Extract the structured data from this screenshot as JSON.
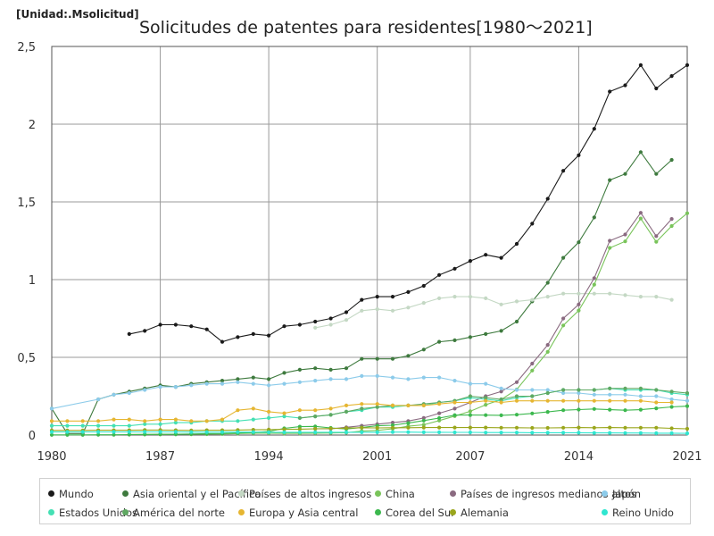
{
  "chart_data": {
    "type": "line",
    "unit_label": "[Unidad:.Msolicitud]",
    "title": "Solicitudes de patentes para residentes[1980～2021]",
    "xlabel": "",
    "ylabel": "",
    "xlim": [
      1980,
      2021
    ],
    "ylim": [
      0,
      2.5
    ],
    "xticks": [
      "1980",
      "1987",
      "1994",
      "2001",
      "2007",
      "2014",
      "2021"
    ],
    "yticks": [
      "0",
      "0,5",
      "1",
      "1,5",
      "2",
      "2,5"
    ],
    "grid": true,
    "legend_position": "bottom",
    "series": [
      {
        "name": "Mundo",
        "color": "#1a1a1a",
        "x": [
          1985,
          1986,
          1987,
          1988,
          1989,
          1990,
          1991,
          1992,
          1993,
          1994,
          1995,
          1996,
          1997,
          1998,
          1999,
          2000,
          2001,
          2002,
          2003,
          2004,
          2005,
          2006,
          2007,
          2008,
          2009,
          2010,
          2011,
          2012,
          2013,
          2014,
          2015,
          2016,
          2017,
          2018,
          2019,
          2020,
          2021
        ],
        "y": [
          0.65,
          0.67,
          0.71,
          0.71,
          0.7,
          0.68,
          0.6,
          0.63,
          0.65,
          0.64,
          0.7,
          0.71,
          0.73,
          0.75,
          0.79,
          0.87,
          0.89,
          0.89,
          0.92,
          0.96,
          1.03,
          1.07,
          1.12,
          1.16,
          1.14,
          1.23,
          1.36,
          1.52,
          1.7,
          1.8,
          1.97,
          2.21,
          2.25,
          2.38,
          2.23,
          2.31,
          2.38
        ]
      },
      {
        "name": "Asia oriental y el Pacífico",
        "color": "#3e7a3e",
        "x": [
          1980,
          1981,
          1982,
          1983,
          1984,
          1985,
          1986,
          1987,
          1988,
          1989,
          1990,
          1991,
          1992,
          1993,
          1994,
          1995,
          1996,
          1997,
          1998,
          1999,
          2000,
          2001,
          2002,
          2003,
          2004,
          2005,
          2006,
          2007,
          2008,
          2009,
          2010,
          2011,
          2012,
          2013,
          2014,
          2015,
          2016,
          2017,
          2018,
          2019,
          2020
        ],
        "y": [
          0.17,
          0.01,
          0.01,
          0.23,
          0.26,
          0.28,
          0.3,
          0.32,
          0.31,
          0.33,
          0.34,
          0.35,
          0.36,
          0.37,
          0.36,
          0.4,
          0.42,
          0.43,
          0.42,
          0.43,
          0.49,
          0.49,
          0.49,
          0.51,
          0.55,
          0.6,
          0.61,
          0.63,
          0.65,
          0.67,
          0.73,
          0.86,
          0.98,
          1.14,
          1.24,
          1.4,
          1.64,
          1.68,
          1.82,
          1.68,
          1.77
        ]
      },
      {
        "name": "Países de altos ingresos",
        "color": "#c4d8c4",
        "x": [
          1997,
          1998,
          1999,
          2000,
          2001,
          2002,
          2003,
          2004,
          2005,
          2006,
          2007,
          2008,
          2009,
          2010,
          2011,
          2012,
          2013,
          2014,
          2015,
          2016,
          2017,
          2018,
          2019,
          2020
        ],
        "y": [
          0.69,
          0.71,
          0.74,
          0.8,
          0.81,
          0.8,
          0.82,
          0.85,
          0.88,
          0.89,
          0.89,
          0.88,
          0.84,
          0.86,
          0.87,
          0.89,
          0.91,
          0.91,
          0.91,
          0.91,
          0.9,
          0.89,
          0.89,
          0.87
        ]
      },
      {
        "name": "China",
        "color": "#79c45a",
        "x": [
          1985,
          1986,
          1987,
          1988,
          1989,
          1990,
          1991,
          1992,
          1993,
          1994,
          1995,
          1996,
          1997,
          1998,
          1999,
          2000,
          2001,
          2002,
          2003,
          2004,
          2005,
          2006,
          2007,
          2008,
          2009,
          2010,
          2011,
          2012,
          2013,
          2014,
          2015,
          2016,
          2017,
          2018,
          2019,
          2020,
          2021
        ],
        "y": [
          0.004,
          0.004,
          0.004,
          0.005,
          0.005,
          0.006,
          0.007,
          0.01,
          0.012,
          0.012,
          0.011,
          0.011,
          0.012,
          0.013,
          0.015,
          0.025,
          0.03,
          0.04,
          0.057,
          0.066,
          0.093,
          0.122,
          0.153,
          0.195,
          0.229,
          0.293,
          0.415,
          0.535,
          0.705,
          0.801,
          0.968,
          1.204,
          1.246,
          1.393,
          1.243,
          1.345,
          1.427
        ]
      },
      {
        "name": "Países de ingresos medianos altos",
        "color": "#8a6a80",
        "x": [
          1997,
          1998,
          1999,
          2000,
          2001,
          2002,
          2003,
          2004,
          2005,
          2006,
          2007,
          2008,
          2009,
          2010,
          2011,
          2012,
          2013,
          2014,
          2015,
          2016,
          2017,
          2018,
          2019,
          2020
        ],
        "y": [
          0.04,
          0.04,
          0.05,
          0.06,
          0.07,
          0.08,
          0.09,
          0.11,
          0.14,
          0.17,
          0.21,
          0.25,
          0.28,
          0.34,
          0.46,
          0.58,
          0.75,
          0.84,
          1.01,
          1.25,
          1.29,
          1.43,
          1.28,
          1.39
        ]
      },
      {
        "name": "Japón",
        "color": "#8ccbea",
        "x": [
          1980,
          1983,
          1984,
          1985,
          1986,
          1987,
          1988,
          1989,
          1990,
          1991,
          1992,
          1993,
          1994,
          1995,
          1996,
          1997,
          1998,
          1999,
          2000,
          2001,
          2002,
          2003,
          2004,
          2005,
          2006,
          2007,
          2008,
          2009,
          2010,
          2011,
          2012,
          2013,
          2014,
          2015,
          2016,
          2017,
          2018,
          2019,
          2020,
          2021
        ],
        "y": [
          0.17,
          0.23,
          0.26,
          0.27,
          0.29,
          0.31,
          0.31,
          0.32,
          0.33,
          0.33,
          0.34,
          0.33,
          0.32,
          0.33,
          0.34,
          0.35,
          0.36,
          0.36,
          0.38,
          0.38,
          0.37,
          0.36,
          0.37,
          0.37,
          0.35,
          0.33,
          0.33,
          0.3,
          0.29,
          0.29,
          0.29,
          0.27,
          0.27,
          0.26,
          0.26,
          0.26,
          0.25,
          0.25,
          0.23,
          0.22
        ]
      },
      {
        "name": "Estados Unidos",
        "color": "#44e0b4",
        "x": [
          1980,
          1981,
          1982,
          1983,
          1984,
          1985,
          1986,
          1987,
          1988,
          1989,
          1990,
          1991,
          1992,
          1993,
          1994,
          1995,
          1996,
          1997,
          1998,
          1999,
          2000,
          2001,
          2002,
          2003,
          2004,
          2005,
          2006,
          2007,
          2008,
          2009,
          2010,
          2011,
          2012,
          2013,
          2014,
          2015,
          2016,
          2017,
          2018,
          2019,
          2020,
          2021
        ],
        "y": [
          0.06,
          0.06,
          0.06,
          0.06,
          0.06,
          0.06,
          0.07,
          0.07,
          0.08,
          0.08,
          0.09,
          0.09,
          0.09,
          0.1,
          0.11,
          0.12,
          0.11,
          0.12,
          0.13,
          0.15,
          0.16,
          0.18,
          0.18,
          0.19,
          0.19,
          0.21,
          0.22,
          0.24,
          0.23,
          0.22,
          0.24,
          0.25,
          0.27,
          0.29,
          0.29,
          0.29,
          0.3,
          0.29,
          0.29,
          0.29,
          0.27,
          0.26
        ]
      },
      {
        "name": "América del norte",
        "color": "#5fa862",
        "x": [
          1996,
          1997,
          1998,
          1999,
          2000,
          2001,
          2002,
          2003,
          2004,
          2005,
          2006,
          2007,
          2008,
          2009,
          2010,
          2011,
          2012,
          2013,
          2014,
          2015,
          2016,
          2017,
          2018,
          2019,
          2020,
          2021
        ],
        "y": [
          0.11,
          0.12,
          0.13,
          0.15,
          0.17,
          0.18,
          0.19,
          0.19,
          0.2,
          0.21,
          0.22,
          0.25,
          0.24,
          0.23,
          0.25,
          0.25,
          0.27,
          0.29,
          0.29,
          0.29,
          0.3,
          0.3,
          0.3,
          0.29,
          0.28,
          0.27
        ]
      },
      {
        "name": "Europa y Asia central",
        "color": "#e6b632",
        "x": [
          1980,
          1981,
          1982,
          1983,
          1984,
          1985,
          1986,
          1987,
          1988,
          1989,
          1990,
          1991,
          1992,
          1993,
          1994,
          1995,
          1996,
          1997,
          1998,
          1999,
          2000,
          2001,
          2002,
          2003,
          2004,
          2005,
          2006,
          2007,
          2008,
          2009,
          2010,
          2011,
          2012,
          2013,
          2014,
          2015,
          2016,
          2017,
          2018,
          2019,
          2020
        ],
        "y": [
          0.09,
          0.09,
          0.09,
          0.09,
          0.1,
          0.1,
          0.09,
          0.1,
          0.1,
          0.09,
          0.09,
          0.1,
          0.16,
          0.17,
          0.15,
          0.14,
          0.16,
          0.16,
          0.17,
          0.19,
          0.2,
          0.2,
          0.19,
          0.19,
          0.19,
          0.2,
          0.21,
          0.21,
          0.22,
          0.21,
          0.22,
          0.22,
          0.22,
          0.22,
          0.22,
          0.22,
          0.22,
          0.22,
          0.22,
          0.21,
          0.21
        ]
      },
      {
        "name": "Corea del Sur",
        "color": "#3cb84e",
        "x": [
          1980,
          1981,
          1982,
          1983,
          1984,
          1985,
          1986,
          1987,
          1988,
          1989,
          1990,
          1991,
          1992,
          1993,
          1994,
          1995,
          1996,
          1997,
          1998,
          1999,
          2000,
          2001,
          2002,
          2003,
          2004,
          2005,
          2006,
          2007,
          2008,
          2009,
          2010,
          2011,
          2012,
          2013,
          2014,
          2015,
          2016,
          2017,
          2018,
          2019,
          2020,
          2021
        ],
        "y": [
          0.001,
          0.001,
          0.001,
          0.002,
          0.002,
          0.003,
          0.004,
          0.005,
          0.005,
          0.007,
          0.009,
          0.01,
          0.013,
          0.016,
          0.023,
          0.043,
          0.054,
          0.056,
          0.046,
          0.039,
          0.048,
          0.06,
          0.063,
          0.077,
          0.093,
          0.109,
          0.128,
          0.129,
          0.128,
          0.127,
          0.131,
          0.139,
          0.149,
          0.16,
          0.164,
          0.168,
          0.163,
          0.16,
          0.163,
          0.172,
          0.181,
          0.186
        ]
      },
      {
        "name": "Alemania",
        "color": "#9aa61c",
        "x": [
          1980,
          1981,
          1982,
          1983,
          1984,
          1985,
          1986,
          1987,
          1988,
          1989,
          1990,
          1991,
          1992,
          1993,
          1994,
          1995,
          1996,
          1997,
          1998,
          1999,
          2000,
          2001,
          2002,
          2003,
          2004,
          2005,
          2006,
          2007,
          2008,
          2009,
          2010,
          2011,
          2012,
          2013,
          2014,
          2015,
          2016,
          2017,
          2018,
          2019,
          2020,
          2021
        ],
        "y": [
          0.03,
          0.03,
          0.03,
          0.031,
          0.031,
          0.031,
          0.032,
          0.032,
          0.031,
          0.03,
          0.031,
          0.031,
          0.032,
          0.034,
          0.035,
          0.037,
          0.038,
          0.04,
          0.042,
          0.045,
          0.047,
          0.046,
          0.047,
          0.047,
          0.048,
          0.048,
          0.048,
          0.048,
          0.048,
          0.047,
          0.047,
          0.046,
          0.046,
          0.047,
          0.048,
          0.047,
          0.048,
          0.047,
          0.047,
          0.047,
          0.043,
          0.04
        ]
      },
      {
        "name": "Reino Unido",
        "color": "#2fe6d0",
        "x": [
          1980,
          1981,
          1982,
          1983,
          1984,
          1985,
          1986,
          1987,
          1988,
          1989,
          1990,
          1991,
          1992,
          1993,
          1994,
          1995,
          1996,
          1997,
          1998,
          1999,
          2000,
          2001,
          2002,
          2003,
          2004,
          2005,
          2006,
          2007,
          2008,
          2009,
          2010,
          2011,
          2012,
          2013,
          2014,
          2015,
          2016,
          2017,
          2018,
          2019,
          2020,
          2021
        ],
        "y": [
          0.02,
          0.02,
          0.02,
          0.02,
          0.02,
          0.02,
          0.02,
          0.02,
          0.02,
          0.019,
          0.019,
          0.019,
          0.019,
          0.019,
          0.018,
          0.018,
          0.018,
          0.018,
          0.018,
          0.018,
          0.018,
          0.018,
          0.019,
          0.019,
          0.018,
          0.018,
          0.017,
          0.017,
          0.016,
          0.016,
          0.016,
          0.015,
          0.015,
          0.015,
          0.015,
          0.014,
          0.014,
          0.013,
          0.013,
          0.012,
          0.012,
          0.011
        ]
      }
    ]
  }
}
